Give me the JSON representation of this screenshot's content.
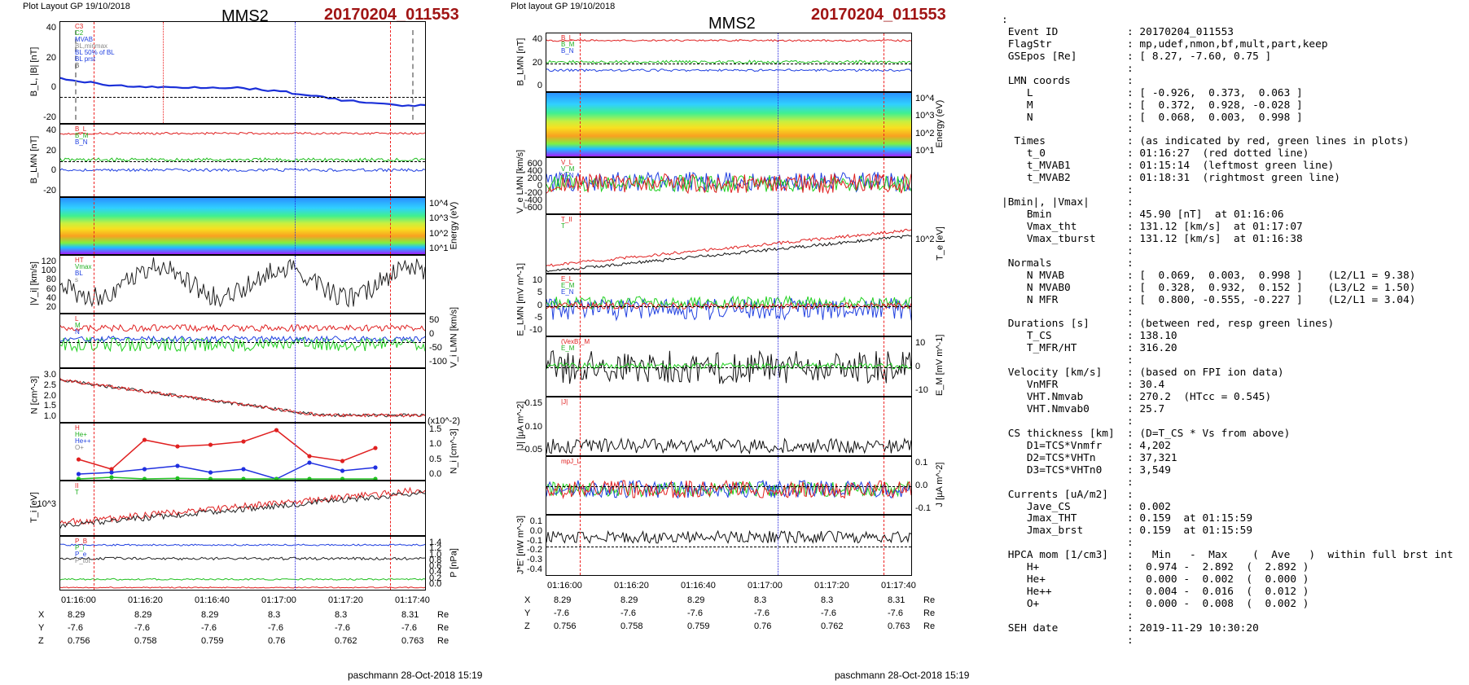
{
  "left_plot": {
    "header_left": "Plot Layout GP 19/10/2018",
    "satellite": "MMS2",
    "event": "20170204_011553",
    "time_ticks": [
      "01:16:00",
      "01:16:20",
      "01:16:40",
      "01:17:00",
      "01:17:20",
      "01:17:40"
    ],
    "footer": "paschmann 28-Oct-2018 15:19",
    "panels": {
      "bl": {
        "ylabel": "B_L, |B| [nT]",
        "ticks": [
          "40",
          "20",
          "0",
          "-20"
        ],
        "legend": [
          "C3",
          "C2",
          "MVAB",
          "BL,minmax",
          "BL 50% of BL",
          "BL prst",
          "B"
        ]
      },
      "blmn": {
        "ylabel": "B_LMN [nT]",
        "ticks": [
          "40",
          "20",
          "0",
          "-20"
        ],
        "legend": [
          "B_L",
          "B_M",
          "B_N"
        ]
      },
      "spec": {
        "ylabel": "Energy (eV)",
        "ticks": [
          "10^4",
          "10^3",
          "10^2",
          "10^1"
        ]
      },
      "vi": {
        "ylabel": "|V_i| [km/s]",
        "ticks": [
          "120",
          "100",
          "80",
          "60",
          "40",
          "20"
        ],
        "legend": [
          "HT",
          "Vmax",
          "BL",
          "s"
        ]
      },
      "vlmn": {
        "ylabel": "V_i LMN [km/s]",
        "ticks": [
          "50",
          "0",
          "-50",
          "-100"
        ],
        "legend": [
          "L",
          "M",
          "N"
        ]
      },
      "n": {
        "ylabel": "N [cm^-3]",
        "ticks": [
          "3.0",
          "2.5",
          "2.0",
          "1.5",
          "1.0"
        ]
      },
      "ni": {
        "ylabel": "N_i [cm^-3]",
        "scale_note": "(x10^-2)",
        "ticks": [
          "1.5",
          "1.0",
          "0.5",
          "0.0"
        ],
        "legend": [
          "H",
          "He+",
          "He++",
          "O+"
        ]
      },
      "ti": {
        "ylabel": "T_i [eV]",
        "ticks": [
          "10^3"
        ],
        "legend": [
          "II",
          "T"
        ]
      },
      "p": {
        "ylabel": "P [nPa]",
        "ticks": [
          "1.4",
          "1.2",
          "1.0",
          "0.8",
          "0.6",
          "0.4",
          "0.2",
          "0.0"
        ],
        "legend": [
          "P_B",
          "P_i",
          "P_e",
          "P_tot"
        ]
      }
    },
    "coords": {
      "labels": [
        "X",
        "Y",
        "Z"
      ],
      "unit": "Re",
      "X": [
        "8.29",
        "8.29",
        "8.29",
        "8.3",
        "8.3",
        "8.31"
      ],
      "Y": [
        "-7.6",
        "-7.6",
        "-7.6",
        "-7.6",
        "-7.6",
        "-7.6"
      ],
      "Z": [
        "0.756",
        "0.758",
        "0.759",
        "0.76",
        "0.762",
        "0.763"
      ]
    }
  },
  "right_plot": {
    "header_left": "Plot layout GP 19/10/2018",
    "satellite": "MMS2",
    "event": "20170204_011553",
    "time_ticks": [
      "01:16:00",
      "01:16:20",
      "01:16:40",
      "01:17:00",
      "01:17:20",
      "01:17:40"
    ],
    "footer": "paschmann 28-Oct-2018 15:19",
    "panels": {
      "blmn": {
        "ylabel": "B_LMN [nT]",
        "ticks": [
          "40",
          "20",
          "0"
        ],
        "legend": [
          "B_L",
          "B_M",
          "B_N"
        ]
      },
      "spec": {
        "ylabel": "Energy (eV)",
        "ticks": [
          "10^4",
          "10^3",
          "10^2",
          "10^1"
        ]
      },
      "ve": {
        "ylabel": "V_e LMN [km/s]",
        "ticks": [
          "600",
          "400",
          "200",
          "0",
          "-200",
          "-400",
          "-600"
        ],
        "legend": [
          "V_L",
          "V_M",
          "V_N"
        ]
      },
      "te": {
        "ylabel": "T_e [eV]",
        "ticks": [
          "10^2"
        ],
        "legend": [
          "T_II",
          "T"
        ]
      },
      "e": {
        "ylabel": "E_LMN [mV m^-1]",
        "ticks": [
          "10",
          "5",
          "0",
          "-5",
          "-10"
        ],
        "legend": [
          "E_L",
          "E_M",
          "E_N"
        ]
      },
      "em": {
        "ylabel": "E_M [mV m^-1]",
        "ticks": [
          "10",
          "0",
          "-10"
        ],
        "legend": [
          "(VexB)_M",
          "E_M"
        ]
      },
      "j": {
        "ylabel": "|J| [µA m^-2]",
        "ticks": [
          "0.15",
          "0.10",
          "0.05"
        ],
        "legend": [
          "|J|"
        ]
      },
      "jlmn": {
        "ylabel": "J [µA m^-2]",
        "ticks": [
          "0.1",
          "0.0",
          "-0.1"
        ],
        "legend": [
          "mpJ_L"
        ]
      },
      "je": {
        "ylabel": "J*E' [nW m^-3]",
        "ticks": [
          "0.1",
          "0.0",
          "-0.1",
          "-0.2",
          "-0.3",
          "-0.4"
        ]
      }
    },
    "coords": {
      "labels": [
        "X",
        "Y",
        "Z"
      ],
      "unit": "Re",
      "X": [
        "8.29",
        "8.29",
        "8.29",
        "8.3",
        "8.3",
        "8.31"
      ],
      "Y": [
        "-7.6",
        "-7.6",
        "-7.6",
        "-7.6",
        "-7.6",
        "-7.6"
      ],
      "Z": [
        "0.756",
        "0.758",
        "0.759",
        "0.76",
        "0.762",
        "0.763"
      ]
    }
  },
  "info_lines": [
    {
      "k": ":",
      "v": ""
    },
    {
      "k": " Event ID",
      "v": ": 20170204_011553"
    },
    {
      "k": " FlagStr",
      "v": ": mp,udef,nmon,bf,mult,part,keep"
    },
    {
      "k": " GSEpos [Re]",
      "v": ": [ 8.27, -7.60, 0.75 ]"
    },
    {
      "k": "",
      "v": ":"
    },
    {
      "k": " LMN coords",
      "v": ":"
    },
    {
      "k": "    L",
      "v": ": [ -0.926,  0.373,  0.063 ]"
    },
    {
      "k": "    M",
      "v": ": [  0.372,  0.928, -0.028 ]"
    },
    {
      "k": "    N",
      "v": ": [  0.068,  0.003,  0.998 ]"
    },
    {
      "k": "",
      "v": ":"
    },
    {
      "k": "  Times",
      "v": ": (as indicated by red, green lines in plots)"
    },
    {
      "k": "    t_0",
      "v": ": 01:16:27  (red dotted line)"
    },
    {
      "k": "    t_MVAB1",
      "v": ": 01:15:14  (leftmost green line)"
    },
    {
      "k": "    t_MVAB2",
      "v": ": 01:18:31  (rightmost green line)"
    },
    {
      "k": "",
      "v": ":"
    },
    {
      "k": "|Bmin|, |Vmax|",
      "v": ":"
    },
    {
      "k": "    Bmin",
      "v": ": 45.90 [nT]  at 01:16:06"
    },
    {
      "k": "    Vmax_tht",
      "v": ": 131.12 [km/s]  at 01:17:07"
    },
    {
      "k": "    Vmax_tburst",
      "v": ": 131.12 [km/s]  at 01:16:38"
    },
    {
      "k": "",
      "v": ":"
    },
    {
      "k": " Normals",
      "v": ":"
    },
    {
      "k": "    N MVAB",
      "v": ": [  0.069,  0.003,  0.998 ]    (L2/L1 = 9.38)"
    },
    {
      "k": "    N MVAB0",
      "v": ": [  0.328,  0.932,  0.152 ]    (L3/L2 = 1.50)"
    },
    {
      "k": "    N MFR",
      "v": ": [  0.800, -0.555, -0.227 ]    (L2/L1 = 3.04)"
    },
    {
      "k": "",
      "v": ":"
    },
    {
      "k": " Durations [s]",
      "v": ": (between red, resp green lines)"
    },
    {
      "k": "    T_CS",
      "v": ": 138.10"
    },
    {
      "k": "    T_MFR/HT",
      "v": ": 316.20"
    },
    {
      "k": "",
      "v": ":"
    },
    {
      "k": " Velocity [km/s]",
      "v": ": (based on FPI ion data)"
    },
    {
      "k": "    VnMFR",
      "v": ": 30.4"
    },
    {
      "k": "    VHT.Nmvab",
      "v": ": 270.2  (HTcc = 0.545)"
    },
    {
      "k": "    VHT.Nmvab0",
      "v": ": 25.7"
    },
    {
      "k": "",
      "v": ":"
    },
    {
      "k": " CS thickness [km]",
      "v": ": (D=T_CS * Vs from above)"
    },
    {
      "k": "    D1=TCS*Vnmfr",
      "v": ": 4,202"
    },
    {
      "k": "    D2=TCS*VHTn",
      "v": ": 37,321"
    },
    {
      "k": "    D3=TCS*VHTn0",
      "v": ": 3,549"
    },
    {
      "k": "",
      "v": ":"
    },
    {
      "k": " Currents [uA/m2]",
      "v": ":"
    },
    {
      "k": "    Jave_CS",
      "v": ": 0.002"
    },
    {
      "k": "    Jmax_THT",
      "v": ": 0.159  at 01:15:59"
    },
    {
      "k": "    Jmax_brst",
      "v": ": 0.159  at 01:15:59"
    },
    {
      "k": "",
      "v": ":"
    },
    {
      "k": " HPCA mom [1/cm3]",
      "v": ":   Min   -  Max    (  Ave   )  within full brst int"
    },
    {
      "k": "    H+",
      "v": ":  0.974 -  2.892  (  2.892 )"
    },
    {
      "k": "    He+",
      "v": ":  0.000 -  0.002  (  0.000 )"
    },
    {
      "k": "    He++",
      "v": ":  0.004 -  0.016  (  0.012 )"
    },
    {
      "k": "    O+",
      "v": ":  0.000 -  0.008  (  0.002 )"
    },
    {
      "k": "",
      "v": ":"
    },
    {
      "k": " SEH date",
      "v": ": 2019-11-29 10:30:20"
    },
    {
      "k": "",
      "v": ":"
    }
  ],
  "chart_data": [
    {
      "type": "line",
      "title": "MMS2",
      "panel": "left N",
      "ylabel": "N [cm^-3]",
      "x": [
        "01:15:55",
        "01:16:00",
        "01:16:10",
        "01:16:20",
        "01:16:40",
        "01:17:00",
        "01:17:20",
        "01:17:40",
        "01:17:50"
      ],
      "values": [
        2.5,
        3.0,
        2.2,
        1.8,
        1.5,
        1.25,
        1.2,
        1.05,
        1.2
      ],
      "ylim": [
        0.8,
        3.2
      ]
    },
    {
      "type": "line",
      "title": "MMS2",
      "panel": "left Ni",
      "ylabel": "N_i [cm^-3]",
      "x": [
        "01:15:56",
        "01:16:08",
        "01:16:20",
        "01:16:32",
        "01:16:44",
        "01:16:56",
        "01:17:08",
        "01:17:20",
        "01:17:32",
        "01:17:44"
      ],
      "series": [
        {
          "name": "He++",
          "values": [
            0.6,
            0.3,
            1.2,
            1.0,
            1.05,
            1.15,
            1.5,
            0.7,
            0.55,
            0.95
          ]
        },
        {
          "name": "O+",
          "values": [
            0.15,
            0.2,
            0.3,
            0.4,
            0.2,
            0.3,
            0.0,
            0.5,
            0.25,
            0.35
          ]
        },
        {
          "name": "H",
          "values": [
            0.0,
            0.05,
            0.0,
            0.02,
            0.0,
            0.0,
            0.0,
            0.0,
            0.0,
            0.0
          ]
        }
      ],
      "ylim": [
        0,
        1.6
      ]
    }
  ]
}
